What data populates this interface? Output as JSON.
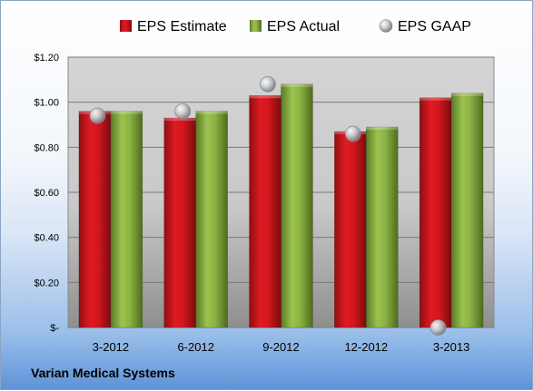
{
  "footer": {
    "company": "Varian Medical Systems"
  },
  "chart_data": {
    "type": "bar",
    "categories": [
      "3-2012",
      "6-2012",
      "9-2012",
      "12-2012",
      "3-2013"
    ],
    "series": [
      {
        "name": "EPS Estimate",
        "type": "bar",
        "color": "#c0141c",
        "values": [
          0.96,
          0.93,
          1.03,
          0.87,
          1.02
        ]
      },
      {
        "name": "EPS Actual",
        "type": "bar",
        "color": "#7da13a",
        "values": [
          0.96,
          0.96,
          1.08,
          0.89,
          1.04
        ]
      },
      {
        "name": "EPS GAAP",
        "type": "scatter",
        "color": "#b8bcc2",
        "values": [
          0.94,
          0.96,
          1.08,
          0.86,
          0.0
        ]
      }
    ],
    "ylim": [
      0,
      1.2
    ],
    "yticks": [
      0,
      0.2,
      0.4,
      0.6,
      0.8,
      1.0,
      1.2
    ],
    "ytick_labels": [
      "$-",
      "$0.20",
      "$0.40",
      "$0.60",
      "$0.80",
      "$1.00",
      "$1.20"
    ],
    "grid": true,
    "legend_position": "top",
    "xlabel": "",
    "ylabel": ""
  }
}
